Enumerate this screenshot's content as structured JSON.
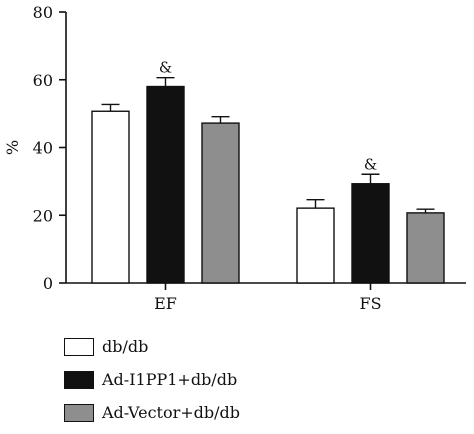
{
  "chart_data": {
    "type": "bar",
    "categories": [
      "EF",
      "FS"
    ],
    "ylabel": "%",
    "ylim": [
      0,
      80
    ],
    "yticks": [
      0,
      20,
      40,
      60,
      80
    ],
    "grid": false,
    "legend_position": "bottom-left",
    "series": [
      {
        "name": "db/db",
        "values": [
          50.7,
          22.1
        ],
        "errors": [
          2.0,
          2.5
        ],
        "color": "#ffffff",
        "annotations": [
          "",
          ""
        ]
      },
      {
        "name": "Ad-I1PP1+db/db",
        "values": [
          58.0,
          29.3
        ],
        "errors": [
          2.6,
          2.8
        ],
        "color": "#111111",
        "annotations": [
          "&",
          "&"
        ]
      },
      {
        "name": "Ad-Vector+db/db",
        "values": [
          47.2,
          20.7
        ],
        "errors": [
          1.9,
          1.1
        ],
        "color": "#8e8e8e",
        "annotations": [
          "",
          ""
        ]
      }
    ]
  }
}
